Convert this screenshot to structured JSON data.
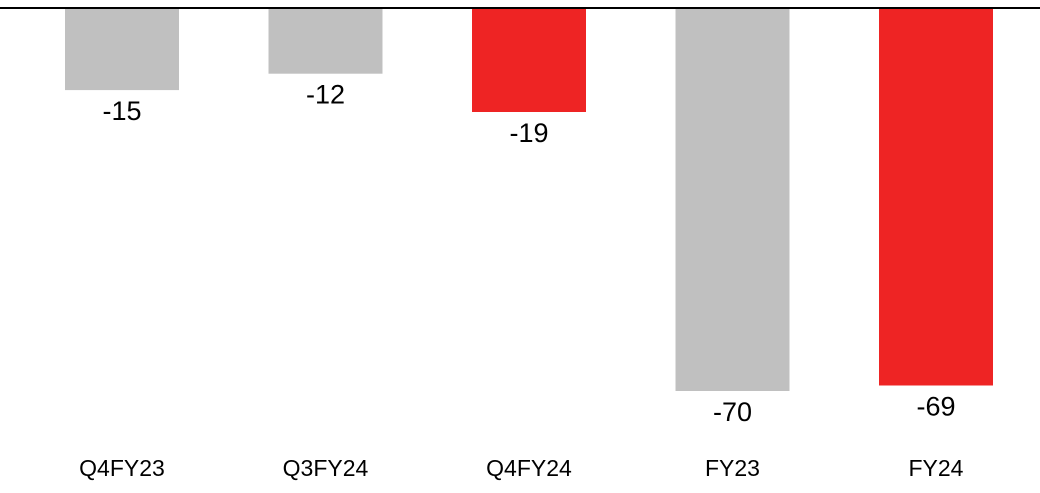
{
  "chart_data": {
    "type": "bar",
    "categories": [
      "Q4FY23",
      "Q3FY24",
      "Q4FY24",
      "FY23",
      "FY24"
    ],
    "values": [
      -15,
      -12,
      -19,
      -70,
      -69
    ],
    "value_labels": [
      "-15",
      "-12",
      "-19",
      "-70",
      "-69"
    ],
    "bar_colors": [
      "#c0c0c0",
      "#c0c0c0",
      "#ee2424",
      "#c0c0c0",
      "#ee2424"
    ],
    "title": "",
    "xlabel": "",
    "ylabel": "",
    "ylim": [
      -70,
      0
    ],
    "axis_color": "#000000",
    "grid": false,
    "legend": "none",
    "data_label_position": "below bar end",
    "category_label_position": "bottom"
  }
}
